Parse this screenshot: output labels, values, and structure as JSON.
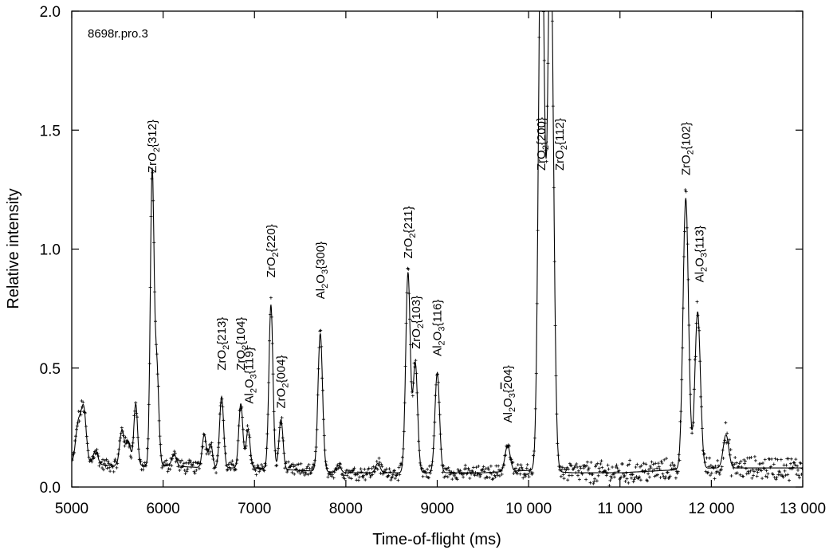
{
  "chart_data": {
    "type": "scatter",
    "xlabel": "Time-of-flight (ms)",
    "ylabel": "Relative intensity",
    "annotation": "8698r.pro.3",
    "xlim": [
      5000,
      13000
    ],
    "ylim": [
      0,
      2.0
    ],
    "x_ticks": [
      5000,
      6000,
      7000,
      8000,
      9000,
      10000,
      11000,
      12000,
      13000
    ],
    "x_tick_labels": [
      "5000",
      "6000",
      "7000",
      "8000",
      "9000",
      "10 000",
      "11 000",
      "12 000",
      "13 000"
    ],
    "y_ticks": [
      0,
      0.5,
      1.0,
      1.5,
      2.0
    ],
    "y_tick_labels": [
      "0.0",
      "0.5",
      "1.0",
      "1.5",
      "2.0"
    ],
    "grid": false,
    "series": [
      {
        "style": "points",
        "marker": "+",
        "description_values": "observed"
      },
      {
        "style": "line",
        "description_values": "fitted"
      }
    ],
    "baseline": [
      [
        5000,
        0.1
      ],
      [
        5500,
        0.09
      ],
      [
        6000,
        0.09
      ],
      [
        6500,
        0.08
      ],
      [
        7000,
        0.08
      ],
      [
        7500,
        0.07
      ],
      [
        8000,
        0.06
      ],
      [
        8500,
        0.06
      ],
      [
        9000,
        0.06
      ],
      [
        9500,
        0.06
      ],
      [
        10000,
        0.07
      ],
      [
        10500,
        0.06
      ],
      [
        11000,
        0.06
      ],
      [
        11500,
        0.07
      ],
      [
        12000,
        0.08
      ],
      [
        12500,
        0.08
      ],
      [
        13000,
        0.08
      ]
    ],
    "peaks": [
      {
        "x": 5070,
        "h": 0.16,
        "w": 28
      },
      {
        "x": 5130,
        "h": 0.23,
        "w": 28
      },
      {
        "x": 5260,
        "h": 0.06,
        "w": 25
      },
      {
        "x": 5550,
        "h": 0.15,
        "w": 25
      },
      {
        "x": 5620,
        "h": 0.1,
        "w": 25
      },
      {
        "x": 5700,
        "h": 0.26,
        "w": 20
      },
      {
        "x": 5880,
        "h": 1.22,
        "w": 20
      },
      {
        "x": 5930,
        "h": 0.42,
        "w": 22
      },
      {
        "x": 6120,
        "h": 0.05,
        "w": 25
      },
      {
        "x": 6450,
        "h": 0.14,
        "w": 22
      },
      {
        "x": 6520,
        "h": 0.1,
        "w": 22
      },
      {
        "x": 6640,
        "h": 0.3,
        "w": 22
      },
      {
        "x": 6850,
        "h": 0.27,
        "w": 22
      },
      {
        "x": 6930,
        "h": 0.16,
        "w": 22
      },
      {
        "x": 7180,
        "h": 0.69,
        "w": 22
      },
      {
        "x": 7290,
        "h": 0.21,
        "w": 22
      },
      {
        "x": 7720,
        "h": 0.58,
        "w": 25
      },
      {
        "x": 7920,
        "h": 0.03,
        "w": 25
      },
      {
        "x": 8350,
        "h": 0.04,
        "w": 25
      },
      {
        "x": 8680,
        "h": 0.84,
        "w": 25
      },
      {
        "x": 8760,
        "h": 0.46,
        "w": 25
      },
      {
        "x": 9000,
        "h": 0.42,
        "w": 25
      },
      {
        "x": 9770,
        "h": 0.11,
        "w": 28
      },
      {
        "x": 10140,
        "h": 2.55,
        "w": 30
      },
      {
        "x": 10240,
        "h": 2.3,
        "w": 32
      },
      {
        "x": 11720,
        "h": 1.14,
        "w": 30
      },
      {
        "x": 11850,
        "h": 0.66,
        "w": 30
      },
      {
        "x": 12160,
        "h": 0.14,
        "w": 30
      }
    ],
    "peak_labels": [
      {
        "x": 5880,
        "y": 1.32,
        "text": "ZrO",
        "sub": "2",
        "rest": "{312}"
      },
      {
        "x": 6640,
        "y": 0.49,
        "text": "ZrO",
        "sub": "2",
        "rest": "{213}"
      },
      {
        "x": 6850,
        "y": 0.49,
        "text": "ZrO",
        "sub": "2",
        "rest": "{104}"
      },
      {
        "x": 6940,
        "y": 0.35,
        "text": "Al",
        "sub": "2",
        "rest": "O",
        "sub2": "3",
        "rest2": "{119}"
      },
      {
        "x": 7180,
        "y": 0.88,
        "text": "ZrO",
        "sub": "2",
        "rest": "{220}"
      },
      {
        "x": 7290,
        "y": 0.33,
        "text": "ZrO",
        "sub": "2",
        "rest": "{004}"
      },
      {
        "x": 7720,
        "y": 0.79,
        "text": "Al",
        "sub": "2",
        "rest": "O",
        "sub2": "3",
        "rest2": "{300}"
      },
      {
        "x": 8680,
        "y": 0.96,
        "text": "ZrO",
        "sub": "2",
        "rest": "{211}"
      },
      {
        "x": 8770,
        "y": 0.58,
        "text": "ZrO",
        "sub": "2",
        "rest": "{103}"
      },
      {
        "x": 9000,
        "y": 0.55,
        "text": "Al",
        "sub": "2",
        "rest": "O",
        "sub2": "3",
        "rest2": "{116}"
      },
      {
        "x": 9770,
        "y": 0.27,
        "text": "Al",
        "sub": "2",
        "rest": "O",
        "sub2": "3",
        "rest2": "{",
        "bar": "2",
        "rest3": "04}"
      },
      {
        "x": 10140,
        "y": 1.33,
        "text": "ZrO",
        "sub": "2",
        "rest": "{200}"
      },
      {
        "x": 10340,
        "y": 1.33,
        "text": "ZrO",
        "sub": "2",
        "rest": "{112}"
      },
      {
        "x": 11720,
        "y": 1.31,
        "text": "ZrO",
        "sub": "2",
        "rest": "{102}"
      },
      {
        "x": 11870,
        "y": 0.86,
        "text": "Al",
        "sub": "2",
        "rest": "O",
        "sub2": "3",
        "rest2": "{113}"
      }
    ]
  }
}
